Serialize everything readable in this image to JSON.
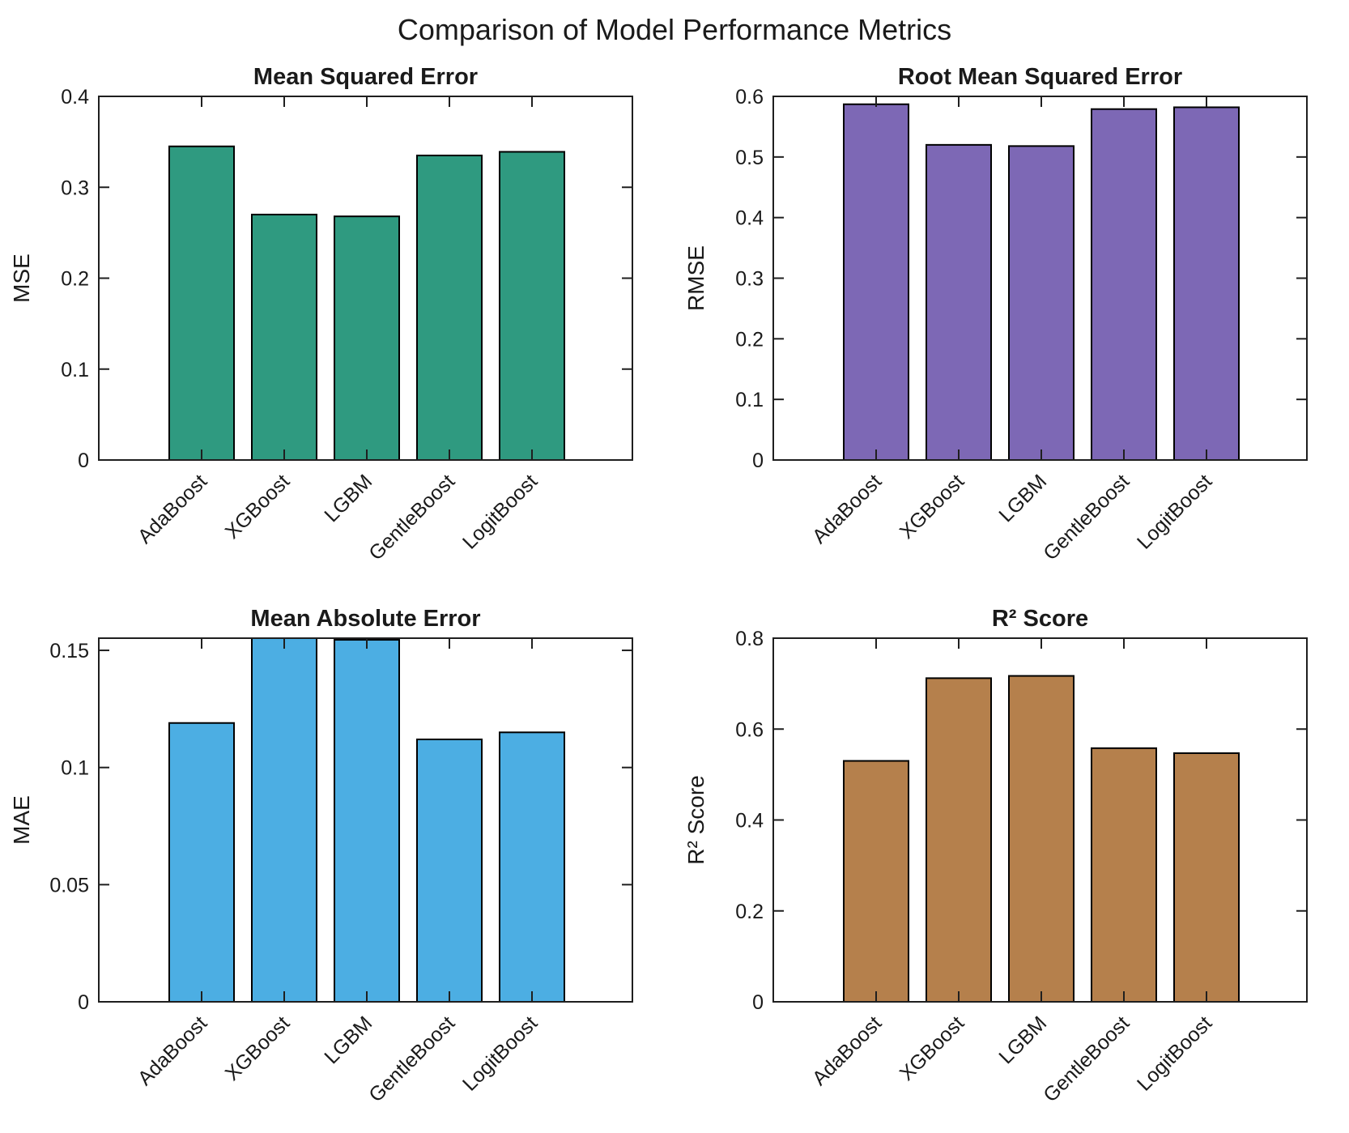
{
  "figure": {
    "title": "Comparison of Model Performance Metrics",
    "background_color": "#ffffff",
    "text_color": "#1a1a1a",
    "axes_line_color": "#1f1f1f"
  },
  "categories": [
    "AdaBoost",
    "XGBoost",
    "LGBM",
    "GentleBoost",
    "LogitBoost"
  ],
  "chart_data": [
    {
      "type": "bar",
      "title": "Mean Squared Error",
      "xlabel": "",
      "ylabel": "MSE",
      "bar_color": "#2f9a80",
      "edge_color": "#000000",
      "ylim": [
        0,
        0.4
      ],
      "yticks": [
        0,
        0.1,
        0.2,
        0.3,
        0.4
      ],
      "ytick_labels": [
        "0",
        "0.1",
        "0.2",
        "0.3",
        "0.4"
      ],
      "categories": [
        "AdaBoost",
        "XGBoost",
        "LGBM",
        "GentleBoost",
        "LogitBoost"
      ],
      "values": [
        0.345,
        0.27,
        0.268,
        0.335,
        0.339
      ],
      "grid": false,
      "legend": "none",
      "x_tick_rotation_deg": 45
    },
    {
      "type": "bar",
      "title": "Root Mean Squared Error",
      "xlabel": "",
      "ylabel": "RMSE",
      "bar_color": "#7d68b5",
      "edge_color": "#000000",
      "ylim": [
        0,
        0.6
      ],
      "yticks": [
        0,
        0.1,
        0.2,
        0.3,
        0.4,
        0.5,
        0.6
      ],
      "ytick_labels": [
        "0",
        "0.1",
        "0.2",
        "0.3",
        "0.4",
        "0.5",
        "0.6"
      ],
      "categories": [
        "AdaBoost",
        "XGBoost",
        "LGBM",
        "GentleBoost",
        "LogitBoost"
      ],
      "values": [
        0.587,
        0.52,
        0.518,
        0.579,
        0.582
      ],
      "grid": false,
      "legend": "none",
      "x_tick_rotation_deg": 45
    },
    {
      "type": "bar",
      "title": "Mean Absolute Error",
      "xlabel": "",
      "ylabel": "MAE",
      "bar_color": "#4caee3",
      "edge_color": "#000000",
      "ylim": [
        0,
        0.1552
      ],
      "yticks": [
        0,
        0.05,
        0.1,
        0.15
      ],
      "ytick_labels": [
        "0",
        "0.05",
        "0.1",
        "0.15"
      ],
      "categories": [
        "AdaBoost",
        "XGBoost",
        "LGBM",
        "GentleBoost",
        "LogitBoost"
      ],
      "values": [
        0.119,
        0.1552,
        0.1545,
        0.112,
        0.115
      ],
      "grid": false,
      "legend": "none",
      "x_tick_rotation_deg": 45
    },
    {
      "type": "bar",
      "title": "R² Score",
      "xlabel": "",
      "ylabel": "R² Score",
      "bar_color": "#b5804c",
      "edge_color": "#000000",
      "ylim": [
        0,
        0.8
      ],
      "yticks": [
        0,
        0.2,
        0.4,
        0.6,
        0.8
      ],
      "ytick_labels": [
        "0",
        "0.2",
        "0.4",
        "0.6",
        "0.8"
      ],
      "categories": [
        "AdaBoost",
        "XGBoost",
        "LGBM",
        "GentleBoost",
        "LogitBoost"
      ],
      "values": [
        0.53,
        0.712,
        0.717,
        0.558,
        0.547
      ],
      "grid": false,
      "legend": "none",
      "x_tick_rotation_deg": 45
    }
  ]
}
